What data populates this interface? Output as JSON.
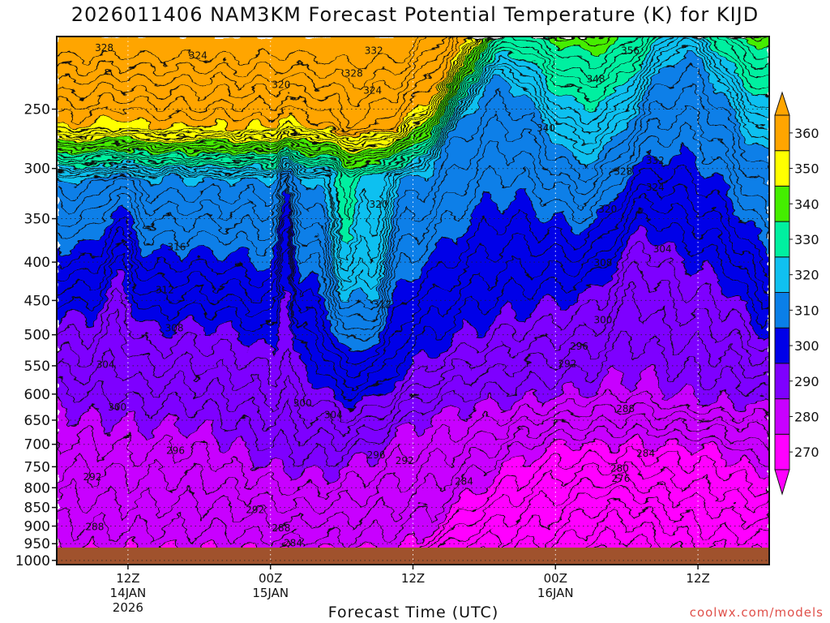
{
  "chart_data": {
    "type": "heatmap",
    "title": "2026011406 NAM3KM Forecast Potential Temperature (K) for KIJD",
    "xlabel": "Forecast Time (UTC)",
    "ylabel": "",
    "y_axis": {
      "scale": "log-pressure",
      "ticks": [
        250,
        300,
        350,
        400,
        450,
        500,
        550,
        600,
        650,
        700,
        750,
        800,
        850,
        900,
        950,
        1000
      ],
      "range": [
        200,
        1013
      ]
    },
    "x_axis": {
      "range_hours": [
        6,
        66
      ],
      "ticks": [
        {
          "hour": 12,
          "lines": [
            "12Z",
            "14JAN",
            "2026"
          ]
        },
        {
          "hour": 24,
          "lines": [
            "00Z",
            "15JAN"
          ]
        },
        {
          "hour": 36,
          "lines": [
            "12Z"
          ]
        },
        {
          "hour": 48,
          "lines": [
            "00Z",
            "16JAN"
          ]
        },
        {
          "hour": 60,
          "lines": [
            "12Z"
          ]
        }
      ]
    },
    "colorbar": {
      "levels": [
        270,
        280,
        290,
        300,
        310,
        320,
        330,
        340,
        350,
        360
      ],
      "colors": [
        "#ff00ff",
        "#c800ff",
        "#7e00ff",
        "#0000e8",
        "#0a7fe8",
        "#10c0f0",
        "#00f0a0",
        "#44ee00",
        "#ffff00",
        "#ffa500"
      ]
    },
    "contour_interval": 2,
    "contour_labels": [
      {
        "value": "328",
        "hour": 10.0,
        "p": 207
      },
      {
        "value": "324",
        "hour": 17.9,
        "p": 212
      },
      {
        "value": "332",
        "hour": 32.7,
        "p": 209
      },
      {
        "value": "356",
        "hour": 54.3,
        "p": 209
      },
      {
        "value": "328",
        "hour": 31.0,
        "p": 224
      },
      {
        "value": "320",
        "hour": 24.9,
        "p": 232
      },
      {
        "value": "324",
        "hour": 32.6,
        "p": 236
      },
      {
        "value": "348",
        "hour": 51.4,
        "p": 228
      },
      {
        "value": "340",
        "hour": 47.2,
        "p": 265
      },
      {
        "value": "332",
        "hour": 56.4,
        "p": 293
      },
      {
        "value": "328",
        "hour": 53.7,
        "p": 303
      },
      {
        "value": "324",
        "hour": 56.4,
        "p": 318
      },
      {
        "value": "320",
        "hour": 33.1,
        "p": 335
      },
      {
        "value": "320",
        "hour": 52.4,
        "p": 340
      },
      {
        "value": "316",
        "hour": 16.1,
        "p": 382
      },
      {
        "value": "304",
        "hour": 57.0,
        "p": 384
      },
      {
        "value": "308",
        "hour": 52.0,
        "p": 401
      },
      {
        "value": "312",
        "hour": 15.1,
        "p": 436
      },
      {
        "value": "312",
        "hour": 33.4,
        "p": 456
      },
      {
        "value": "300",
        "hour": 52.0,
        "p": 478
      },
      {
        "value": "308",
        "hour": 15.9,
        "p": 490
      },
      {
        "value": "296",
        "hour": 50.0,
        "p": 518
      },
      {
        "value": "304",
        "hour": 10.1,
        "p": 548
      },
      {
        "value": "292",
        "hour": 49.0,
        "p": 547
      },
      {
        "value": "300",
        "hour": 26.7,
        "p": 617
      },
      {
        "value": "300",
        "hour": 11.1,
        "p": 625
      },
      {
        "value": "304",
        "hour": 29.3,
        "p": 640
      },
      {
        "value": "288",
        "hour": 53.9,
        "p": 628
      },
      {
        "value": "296",
        "hour": 16.0,
        "p": 714
      },
      {
        "value": "296",
        "hour": 32.9,
        "p": 724
      },
      {
        "value": "292",
        "hour": 35.3,
        "p": 736
      },
      {
        "value": "284",
        "hour": 55.6,
        "p": 720
      },
      {
        "value": "292",
        "hour": 9.0,
        "p": 774
      },
      {
        "value": "280",
        "hour": 53.4,
        "p": 754
      },
      {
        "value": "284",
        "hour": 40.3,
        "p": 785
      },
      {
        "value": "276",
        "hour": 53.5,
        "p": 778
      },
      {
        "value": "292",
        "hour": 22.7,
        "p": 856
      },
      {
        "value": "288",
        "hour": 9.2,
        "p": 902
      },
      {
        "value": "288",
        "hour": 24.9,
        "p": 905
      },
      {
        "value": "284",
        "hour": 25.9,
        "p": 948
      }
    ]
  },
  "footer": {
    "credit": "coolwx.com/models"
  }
}
